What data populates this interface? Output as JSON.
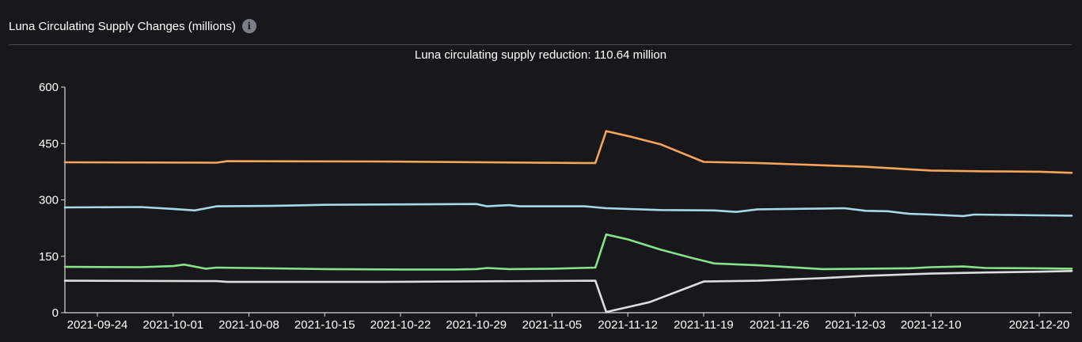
{
  "header": {
    "title": "Luna Circulating Supply Changes (millions)",
    "info_icon": "info-icon"
  },
  "chart_data": {
    "type": "line",
    "subtitle": "Luna circulating supply reduction: 110.64 million",
    "xlabel": "",
    "ylabel": "",
    "ylim": [
      0,
      600
    ],
    "yticks": [
      0,
      150,
      300,
      450,
      600
    ],
    "xlim": [
      "2021-09-21",
      "2021-12-23"
    ],
    "xticks": [
      "2021-09-24",
      "2021-10-01",
      "2021-10-08",
      "2021-10-15",
      "2021-10-22",
      "2021-10-29",
      "2021-11-05",
      "2021-11-12",
      "2021-11-19",
      "2021-11-26",
      "2021-12-03",
      "2021-12-10",
      "2021-12-20"
    ],
    "grid": false,
    "legend": "none",
    "series": [
      {
        "color": "#f5a55a",
        "points": [
          [
            "2021-09-21",
            400
          ],
          [
            "2021-10-05",
            399
          ],
          [
            "2021-10-06",
            403
          ],
          [
            "2021-10-20",
            402
          ],
          [
            "2021-11-08",
            398
          ],
          [
            "2021-11-09",
            398
          ],
          [
            "2021-11-10",
            483
          ],
          [
            "2021-11-12",
            470
          ],
          [
            "2021-11-15",
            448
          ],
          [
            "2021-11-19",
            401
          ],
          [
            "2021-11-24",
            398
          ],
          [
            "2021-11-30",
            392
          ],
          [
            "2021-12-04",
            388
          ],
          [
            "2021-12-07",
            383
          ],
          [
            "2021-12-10",
            378
          ],
          [
            "2021-12-15",
            376
          ],
          [
            "2021-12-20",
            375
          ],
          [
            "2021-12-23",
            372
          ]
        ]
      },
      {
        "color": "#a6d8e8",
        "points": [
          [
            "2021-09-21",
            280
          ],
          [
            "2021-09-28",
            281
          ],
          [
            "2021-10-01",
            276
          ],
          [
            "2021-10-03",
            272
          ],
          [
            "2021-10-05",
            283
          ],
          [
            "2021-10-10",
            284
          ],
          [
            "2021-10-15",
            287
          ],
          [
            "2021-10-22",
            288
          ],
          [
            "2021-10-29",
            289
          ],
          [
            "2021-10-30",
            283
          ],
          [
            "2021-11-01",
            286
          ],
          [
            "2021-11-02",
            283
          ],
          [
            "2021-11-08",
            283
          ],
          [
            "2021-11-10",
            278
          ],
          [
            "2021-11-15",
            273
          ],
          [
            "2021-11-20",
            272
          ],
          [
            "2021-11-22",
            268
          ],
          [
            "2021-11-24",
            275
          ],
          [
            "2021-11-30",
            277
          ],
          [
            "2021-12-02",
            278
          ],
          [
            "2021-12-04",
            271
          ],
          [
            "2021-12-06",
            270
          ],
          [
            "2021-12-08",
            263
          ],
          [
            "2021-12-10",
            261
          ],
          [
            "2021-12-13",
            257
          ],
          [
            "2021-12-14",
            261
          ],
          [
            "2021-12-20",
            259
          ],
          [
            "2021-12-23",
            258
          ]
        ]
      },
      {
        "color": "#86e389",
        "points": [
          [
            "2021-09-21",
            122
          ],
          [
            "2021-09-28",
            121
          ],
          [
            "2021-10-01",
            124
          ],
          [
            "2021-10-02",
            128
          ],
          [
            "2021-10-04",
            117
          ],
          [
            "2021-10-05",
            120
          ],
          [
            "2021-10-15",
            116
          ],
          [
            "2021-10-22",
            115
          ],
          [
            "2021-10-27",
            115
          ],
          [
            "2021-10-29",
            116
          ],
          [
            "2021-10-30",
            119
          ],
          [
            "2021-11-01",
            116
          ],
          [
            "2021-11-05",
            117
          ],
          [
            "2021-11-09",
            120
          ],
          [
            "2021-11-10",
            208
          ],
          [
            "2021-11-12",
            195
          ],
          [
            "2021-11-15",
            168
          ],
          [
            "2021-11-18",
            145
          ],
          [
            "2021-11-20",
            131
          ],
          [
            "2021-11-24",
            126
          ],
          [
            "2021-11-30",
            116
          ],
          [
            "2021-12-04",
            117
          ],
          [
            "2021-12-08",
            118
          ],
          [
            "2021-12-10",
            121
          ],
          [
            "2021-12-13",
            123
          ],
          [
            "2021-12-15",
            119
          ],
          [
            "2021-12-20",
            118
          ],
          [
            "2021-12-23",
            117
          ]
        ]
      },
      {
        "color": "#dddddd",
        "points": [
          [
            "2021-09-21",
            85
          ],
          [
            "2021-10-05",
            84
          ],
          [
            "2021-10-06",
            82
          ],
          [
            "2021-10-20",
            82
          ],
          [
            "2021-11-09",
            85
          ],
          [
            "2021-11-10",
            2
          ],
          [
            "2021-11-14",
            28
          ],
          [
            "2021-11-19",
            83
          ],
          [
            "2021-11-24",
            85
          ],
          [
            "2021-11-30",
            92
          ],
          [
            "2021-12-04",
            98
          ],
          [
            "2021-12-10",
            104
          ],
          [
            "2021-12-15",
            107
          ],
          [
            "2021-12-20",
            109
          ],
          [
            "2021-12-23",
            111
          ]
        ]
      }
    ]
  }
}
